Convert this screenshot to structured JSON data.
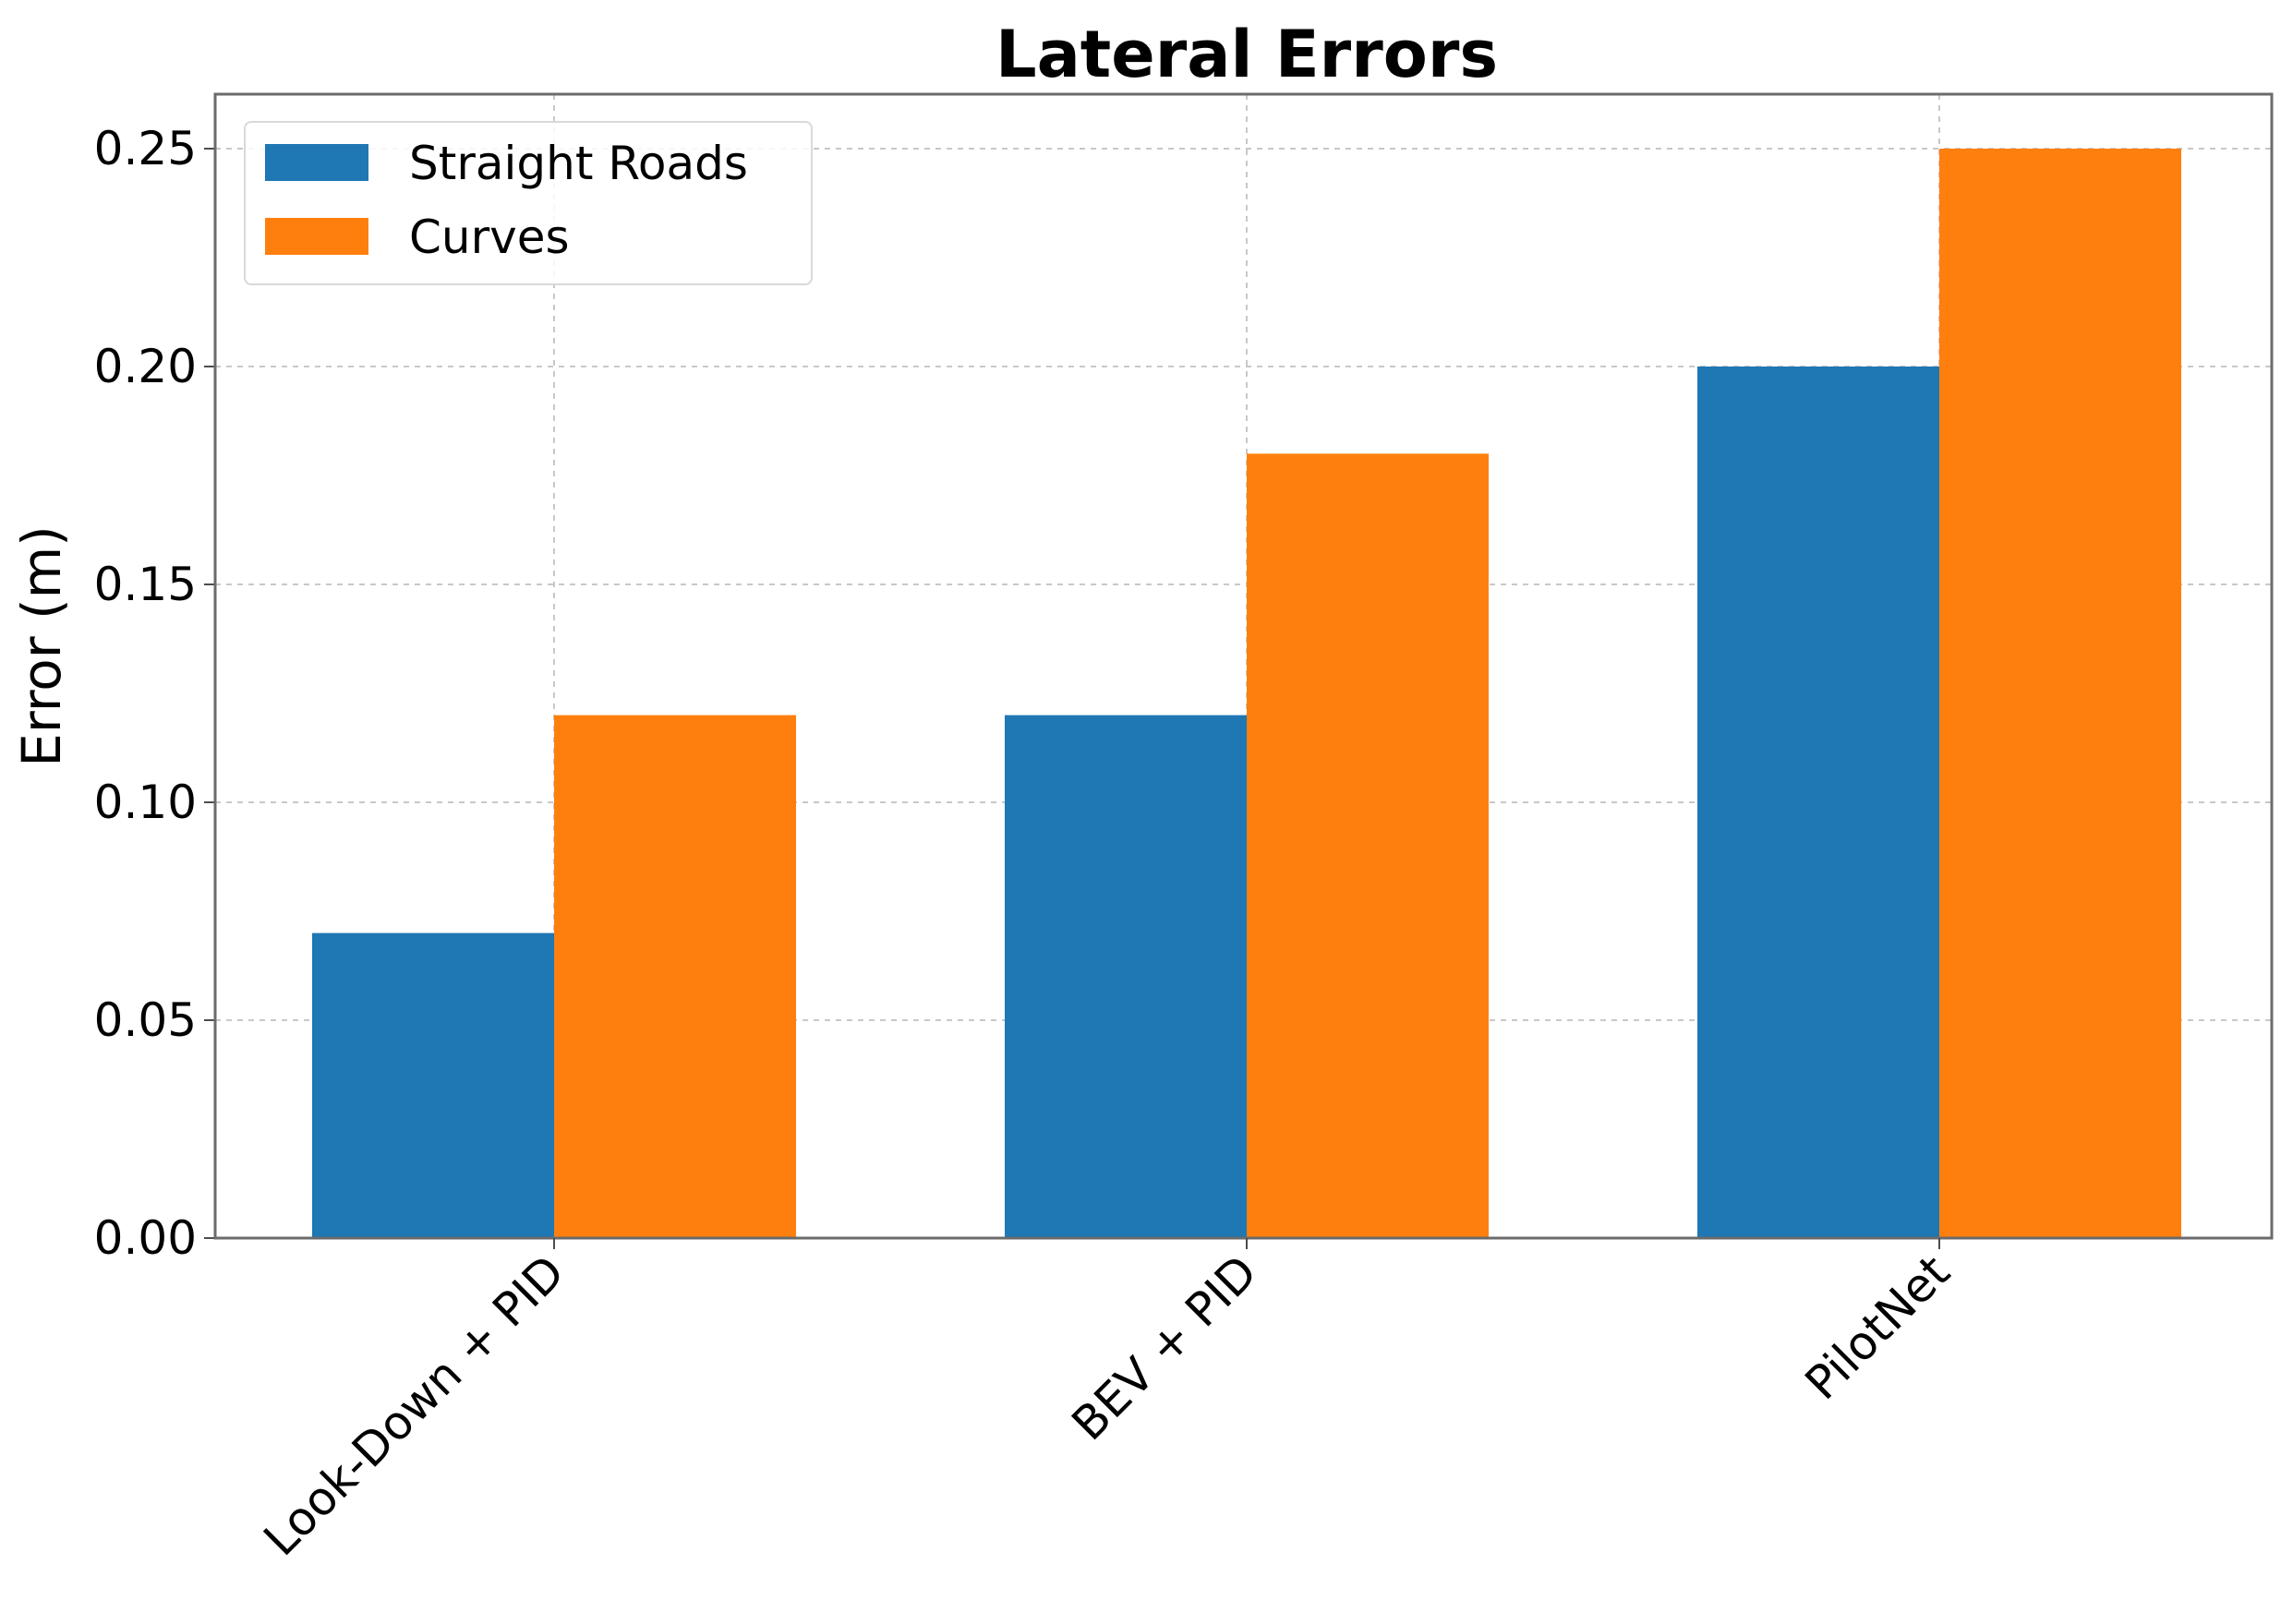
{
  "chart_data": {
    "type": "bar",
    "title": "Lateral Errors",
    "xlabel": "",
    "ylabel": "Error (m)",
    "categories": [
      "Look-Down + PID",
      "BEV + PID",
      "PilotNet"
    ],
    "series": [
      {
        "name": "Straight Roads",
        "values": [
          0.07,
          0.12,
          0.2
        ],
        "color": "#1f77b4"
      },
      {
        "name": "Curves",
        "values": [
          0.12,
          0.18,
          0.25
        ],
        "color": "#ff7f0e"
      }
    ],
    "ylim": [
      0,
      0.2625
    ],
    "yticks": [
      "0.00",
      "0.05",
      "0.10",
      "0.15",
      "0.20",
      "0.25"
    ],
    "grid": true,
    "legend_position": "top-left",
    "xtick_rotation": "45 degrees"
  }
}
